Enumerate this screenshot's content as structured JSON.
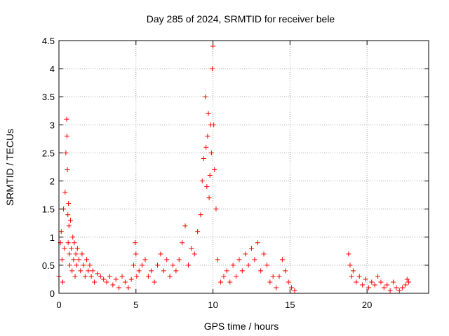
{
  "chart_data": {
    "type": "scatter",
    "title": "Day 285 of 2024, SRMTID for receiver bele",
    "xlabel": "GPS time / hours",
    "ylabel": "SRMTID / TECUs",
    "xlim": [
      0,
      24
    ],
    "ylim": [
      0,
      4.5
    ],
    "xticks": [
      0,
      5,
      10,
      15,
      20
    ],
    "yticks": [
      0,
      0.5,
      1,
      1.5,
      2,
      2.5,
      3,
      3.5,
      4,
      4.5
    ],
    "xtick_labels": [
      "0",
      "5",
      "10",
      "15",
      "20"
    ],
    "ytick_labels": [
      "0",
      "0.5",
      "1",
      "1.5",
      "2",
      "2.5",
      "3",
      "3.5",
      "4",
      "4.5"
    ],
    "grid": true,
    "marker": "+",
    "color": "#ff0000",
    "series": [
      {
        "name": "bele",
        "x": [
          0.0,
          0.1,
          0.15,
          0.2,
          0.25,
          0.3,
          0.35,
          0.4,
          0.45,
          0.5,
          0.52,
          0.55,
          0.58,
          0.6,
          0.62,
          0.65,
          0.68,
          0.7,
          0.75,
          0.8,
          0.85,
          0.9,
          0.95,
          1.0,
          1.05,
          1.1,
          1.15,
          1.2,
          1.3,
          1.4,
          1.5,
          1.6,
          1.7,
          1.8,
          1.9,
          2.0,
          2.1,
          2.2,
          2.3,
          2.5,
          2.7,
          2.9,
          3.1,
          3.3,
          3.5,
          3.7,
          3.9,
          4.1,
          4.3,
          4.5,
          4.7,
          4.85,
          4.95,
          5.0,
          5.05,
          5.2,
          5.4,
          5.6,
          5.8,
          6.0,
          6.2,
          6.4,
          6.6,
          6.8,
          7.0,
          7.2,
          7.4,
          7.6,
          7.8,
          8.0,
          8.2,
          8.4,
          8.6,
          8.8,
          9.0,
          9.2,
          9.3,
          9.4,
          9.5,
          9.55,
          9.6,
          9.65,
          9.7,
          9.75,
          9.8,
          9.85,
          9.9,
          9.95,
          10.0,
          10.05,
          10.1,
          10.2,
          10.3,
          10.5,
          10.7,
          10.9,
          11.1,
          11.3,
          11.5,
          11.7,
          11.9,
          12.1,
          12.3,
          12.5,
          12.7,
          12.9,
          13.1,
          13.3,
          13.5,
          13.7,
          13.9,
          14.1,
          14.3,
          14.5,
          14.7,
          14.9,
          15.1,
          15.3,
          18.8,
          18.9,
          19.0,
          19.1,
          19.3,
          19.5,
          19.7,
          19.9,
          20.1,
          20.3,
          20.5,
          20.7,
          20.9,
          21.1,
          21.3,
          21.5,
          21.7,
          21.9,
          22.1,
          22.3,
          22.5,
          22.6,
          22.7
        ],
        "y": [
          0.3,
          0.9,
          1.1,
          0.6,
          0.2,
          1.5,
          0.8,
          1.8,
          2.5,
          3.1,
          2.8,
          2.2,
          1.4,
          0.9,
          1.6,
          1.2,
          0.7,
          0.5,
          1.3,
          0.8,
          0.4,
          1.0,
          0.6,
          0.9,
          0.3,
          0.7,
          0.5,
          0.8,
          0.6,
          0.4,
          0.7,
          0.5,
          0.3,
          0.6,
          0.4,
          0.5,
          0.3,
          0.4,
          0.2,
          0.35,
          0.3,
          0.25,
          0.2,
          0.3,
          0.15,
          0.25,
          0.1,
          0.3,
          0.2,
          0.1,
          0.25,
          0.5,
          0.9,
          0.7,
          0.3,
          0.4,
          0.5,
          0.6,
          0.3,
          0.4,
          0.2,
          0.5,
          0.7,
          0.4,
          0.6,
          0.3,
          0.5,
          0.4,
          0.6,
          0.9,
          1.2,
          0.5,
          0.8,
          0.7,
          1.1,
          1.4,
          2.0,
          2.4,
          3.5,
          2.6,
          1.9,
          2.8,
          3.2,
          1.7,
          2.1,
          3.0,
          2.5,
          4.0,
          4.4,
          3.0,
          2.2,
          1.5,
          0.6,
          0.2,
          0.3,
          0.4,
          0.2,
          0.5,
          0.3,
          0.6,
          0.4,
          0.7,
          0.5,
          0.8,
          0.6,
          0.9,
          0.4,
          0.7,
          0.5,
          0.2,
          0.3,
          0.1,
          0.3,
          0.6,
          0.4,
          0.2,
          0.1,
          0.05,
          0.7,
          0.5,
          0.3,
          0.4,
          0.2,
          0.3,
          0.15,
          0.25,
          0.1,
          0.2,
          0.15,
          0.3,
          0.2,
          0.1,
          0.15,
          0.05,
          0.2,
          0.1,
          0.05,
          0.1,
          0.15,
          0.25,
          0.2
        ]
      }
    ]
  }
}
